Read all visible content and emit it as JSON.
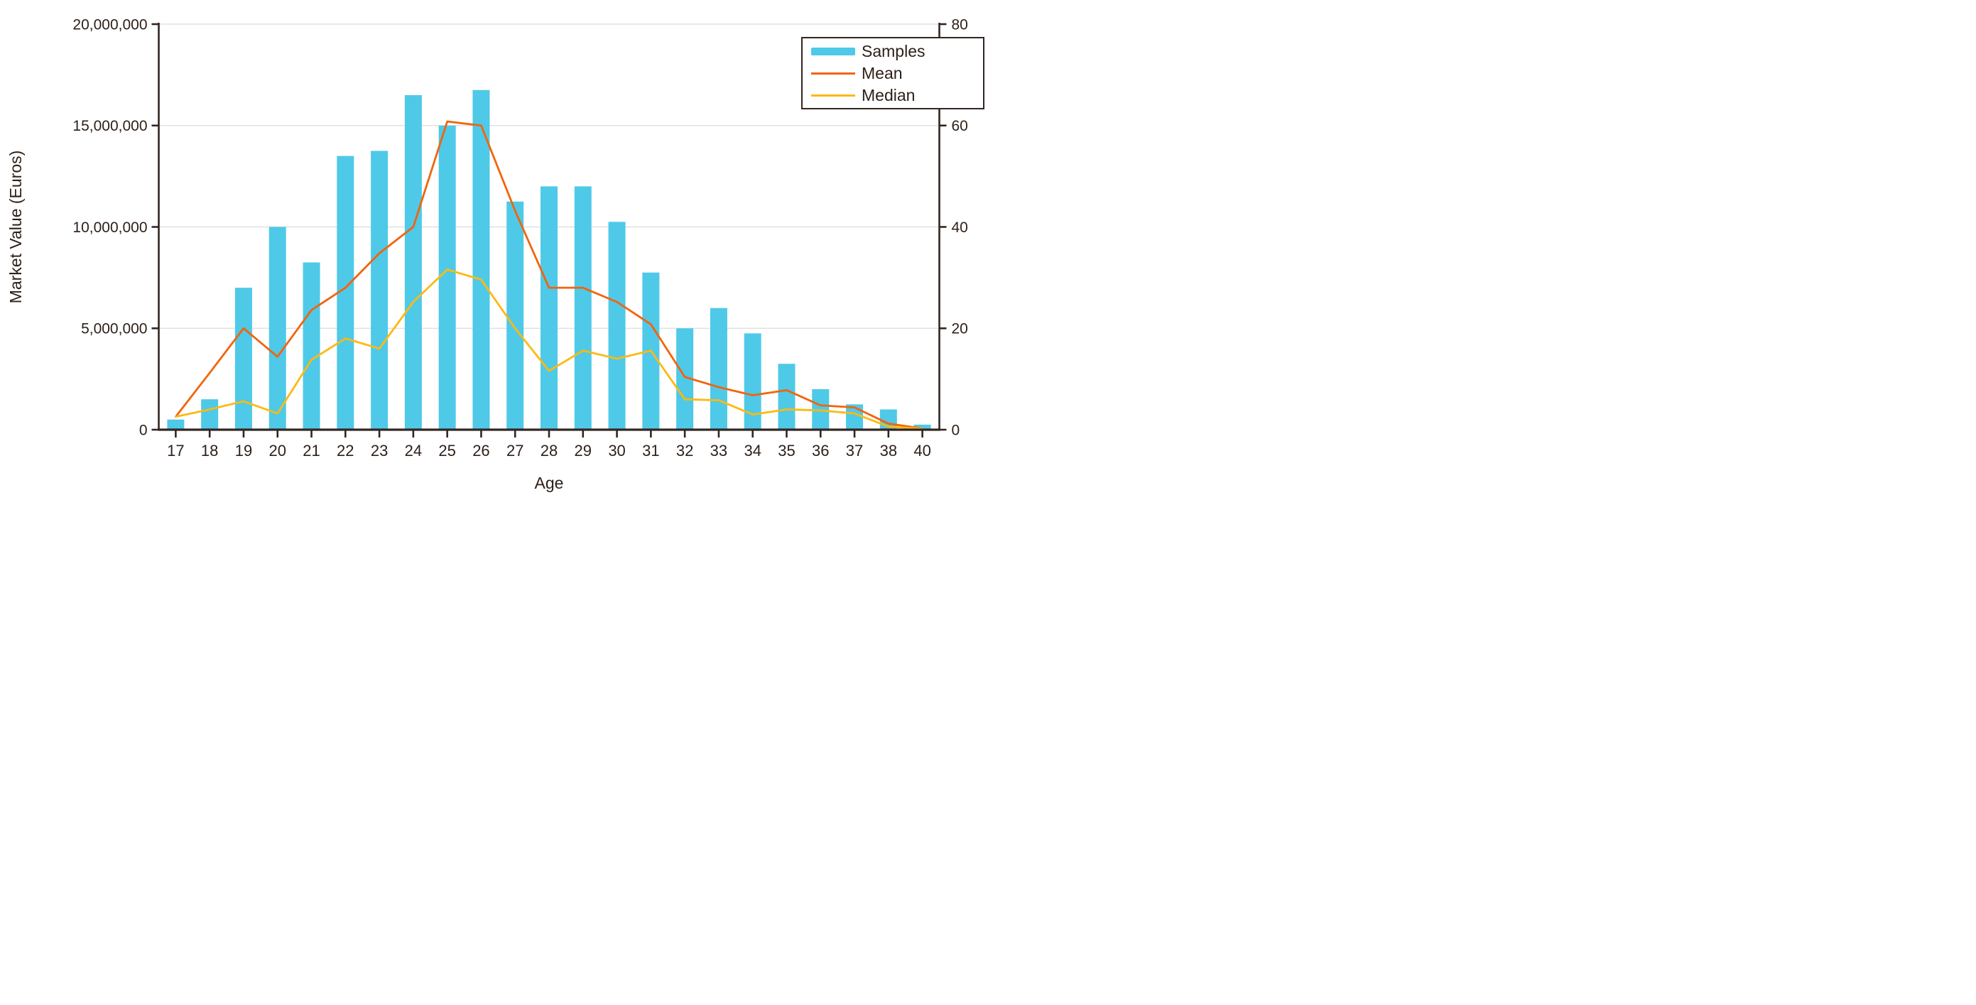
{
  "chart_data": {
    "type": "bar",
    "subtype": "bar-line-combo",
    "categories": [
      "17",
      "18",
      "19",
      "20",
      "21",
      "22",
      "23",
      "24",
      "25",
      "26",
      "27",
      "28",
      "29",
      "30",
      "31",
      "32",
      "33",
      "34",
      "35",
      "36",
      "37",
      "38",
      "40"
    ],
    "series": [
      {
        "name": "Samples",
        "render": "bar",
        "axis": "right",
        "color": "#4FC9E8",
        "values": [
          2,
          6,
          28,
          40,
          33,
          54,
          55,
          66,
          60,
          67,
          45,
          48,
          48,
          41,
          31,
          20,
          24,
          19,
          13,
          8,
          5,
          4,
          1
        ]
      },
      {
        "name": "Mean",
        "render": "line",
        "axis": "left",
        "color": "#F2640C",
        "values": [
          640000,
          2800000,
          5000000,
          3600000,
          5900000,
          7000000,
          8700000,
          10000000,
          15200000,
          15000000,
          10800000,
          7000000,
          7000000,
          6300000,
          5200000,
          2600000,
          2100000,
          1700000,
          1950000,
          1200000,
          1100000,
          300000,
          60000
        ]
      },
      {
        "name": "Median",
        "render": "line",
        "axis": "left",
        "color": "#FDB913",
        "values": [
          640000,
          1000000,
          1400000,
          800000,
          3450000,
          4500000,
          4000000,
          6300000,
          7900000,
          7400000,
          5000000,
          2900000,
          3900000,
          3500000,
          3900000,
          1500000,
          1450000,
          750000,
          1000000,
          950000,
          800000,
          150000,
          50000
        ]
      }
    ],
    "left_axis": {
      "title": "Market Value (Euros)",
      "tick_labels": [
        "0",
        "5,000,000",
        "10,000,000",
        "15,000,000",
        "20,000,000"
      ],
      "tick_values": [
        0,
        5000000,
        10000000,
        15000000,
        20000000
      ],
      "min": 0,
      "max": 20000000
    },
    "right_axis": {
      "tick_labels": [
        "0",
        "20",
        "40",
        "60",
        "80"
      ],
      "tick_values": [
        0,
        20,
        40,
        60,
        80
      ],
      "min": 0,
      "max": 80
    },
    "x_axis": {
      "title": "Age"
    },
    "legend_position": "top-right",
    "grid": true,
    "colors": {
      "axis": "#322622",
      "grid": "#dcdcdc",
      "text": "#2e2019",
      "background": "#ffffff"
    }
  }
}
